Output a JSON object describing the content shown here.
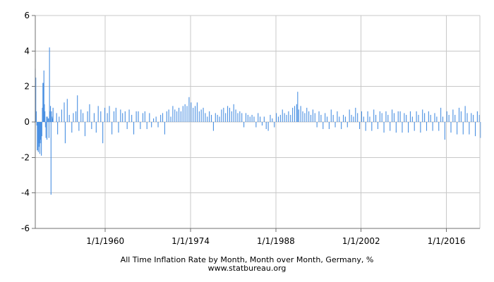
{
  "chart_data": {
    "type": "bar",
    "title": "All Time Inflation Rate by Month, Month over Month, Germany, %",
    "source": "www.statbureau.org",
    "xlabel": "",
    "ylabel": "",
    "x_tick_labels": [
      "1/1/1960",
      "1/1/1974",
      "1/1/1988",
      "1/1/2002",
      "1/1/2016"
    ],
    "x_tick_years": [
      1960,
      1974,
      1988,
      2002,
      2016
    ],
    "x_range_years": [
      1948.5,
      2021.5
    ],
    "y_tick_labels": [
      "6",
      "4",
      "2",
      "0",
      "-2",
      "-4",
      "-6"
    ],
    "ylim": [
      -6,
      6
    ],
    "y_ticks": [
      6,
      4,
      2,
      0,
      -2,
      -4,
      -6
    ],
    "grid": true,
    "legend": "none",
    "series_color": "#4a90e2",
    "grid_color": "#c8c8c8",
    "axis_color": "#707070",
    "series": [
      {
        "points": [
          [
            "1948-07",
            3.0
          ],
          [
            "1948-08",
            2.5
          ],
          [
            "1948-09",
            0.6
          ],
          [
            "1948-10",
            -0.2
          ],
          [
            "1948-11",
            -1.6
          ],
          [
            "1948-12",
            -1.6
          ],
          [
            "1949-01",
            -1.7
          ],
          [
            "1949-02",
            -1.4
          ],
          [
            "1949-03",
            -1.2
          ],
          [
            "1949-04",
            -1.8
          ],
          [
            "1949-05",
            -1.0
          ],
          [
            "1949-06",
            -1.2
          ],
          [
            "1949-07",
            -1.9
          ],
          [
            "1949-08",
            -0.8
          ],
          [
            "1949-09",
            0.8
          ],
          [
            "1949-10",
            2.2
          ],
          [
            "1949-11",
            2.2
          ],
          [
            "1949-12",
            2.9
          ],
          [
            "1950-01",
            1.0
          ],
          [
            "1950-02",
            0.6
          ],
          [
            "1950-03",
            -0.3
          ],
          [
            "1950-04",
            -0.9
          ],
          [
            "1950-05",
            0.3
          ],
          [
            "1950-06",
            -1.0
          ],
          [
            "1950-07",
            0.3
          ],
          [
            "1950-08",
            0.2
          ],
          [
            "1950-09",
            0.2
          ],
          [
            "1950-10",
            -0.9
          ],
          [
            "1950-11",
            4.2
          ],
          [
            "1950-12",
            0.6
          ],
          [
            "1951-01",
            0.9
          ],
          [
            "1951-02",
            -4.1
          ],
          [
            "1951-03",
            0.6
          ],
          [
            "1951-04",
            0.3
          ],
          [
            "1951-05",
            0.2
          ],
          [
            "1951-06",
            0.8
          ],
          [
            "1952-01",
            0.5
          ],
          [
            "1952-03",
            -0.7
          ],
          [
            "1952-06",
            0.3
          ],
          [
            "1952-11",
            0.7
          ],
          [
            "1953-04",
            1.1
          ],
          [
            "1953-06",
            -1.2
          ],
          [
            "1953-10",
            1.3
          ],
          [
            "1954-02",
            0.4
          ],
          [
            "1954-07",
            -0.6
          ],
          [
            "1954-10",
            0.5
          ],
          [
            "1955-03",
            0.6
          ],
          [
            "1955-06",
            1.5
          ],
          [
            "1955-09",
            -0.5
          ],
          [
            "1956-01",
            0.7
          ],
          [
            "1956-05",
            0.5
          ],
          [
            "1956-09",
            -0.8
          ],
          [
            "1957-02",
            0.6
          ],
          [
            "1957-06",
            1.0
          ],
          [
            "1957-10",
            -0.4
          ],
          [
            "1958-03",
            0.5
          ],
          [
            "1958-07",
            -0.6
          ],
          [
            "1958-11",
            0.9
          ],
          [
            "1959-04",
            0.6
          ],
          [
            "1959-08",
            -1.2
          ],
          [
            "1959-12",
            0.8
          ],
          [
            "1960-05",
            0.5
          ],
          [
            "1960-09",
            0.9
          ],
          [
            "1961-02",
            -0.7
          ],
          [
            "1961-06",
            0.6
          ],
          [
            "1961-10",
            0.8
          ],
          [
            "1962-03",
            -0.6
          ],
          [
            "1962-07",
            0.7
          ],
          [
            "1962-11",
            0.5
          ],
          [
            "1963-04",
            0.6
          ],
          [
            "1963-08",
            -0.4
          ],
          [
            "1963-12",
            0.7
          ],
          [
            "1964-05",
            0.4
          ],
          [
            "1964-09",
            -0.7
          ],
          [
            "1965-02",
            0.6
          ],
          [
            "1965-06",
            0.6
          ],
          [
            "1965-10",
            -0.4
          ],
          [
            "1966-03",
            0.5
          ],
          [
            "1966-07",
            0.6
          ],
          [
            "1966-11",
            -0.4
          ],
          [
            "1967-04",
            0.5
          ],
          [
            "1967-08",
            -0.3
          ],
          [
            "1967-12",
            0.2
          ],
          [
            "1968-05",
            0.3
          ],
          [
            "1968-09",
            -0.3
          ],
          [
            "1969-02",
            0.4
          ],
          [
            "1969-06",
            0.5
          ],
          [
            "1969-10",
            -0.7
          ],
          [
            "1970-02",
            0.6
          ],
          [
            "1970-06",
            0.7
          ],
          [
            "1970-10",
            0.3
          ],
          [
            "1971-02",
            0.9
          ],
          [
            "1971-06",
            0.7
          ],
          [
            "1971-10",
            0.6
          ],
          [
            "1972-02",
            0.8
          ],
          [
            "1972-06",
            0.6
          ],
          [
            "1972-10",
            0.9
          ],
          [
            "1973-02",
            1.0
          ],
          [
            "1973-06",
            0.9
          ],
          [
            "1973-10",
            1.4
          ],
          [
            "1974-02",
            1.1
          ],
          [
            "1974-06",
            0.8
          ],
          [
            "1974-10",
            0.9
          ],
          [
            "1975-02",
            1.1
          ],
          [
            "1975-06",
            0.6
          ],
          [
            "1975-10",
            0.7
          ],
          [
            "1976-02",
            0.8
          ],
          [
            "1976-06",
            0.5
          ],
          [
            "1976-10",
            0.3
          ],
          [
            "1977-02",
            0.6
          ],
          [
            "1977-06",
            0.4
          ],
          [
            "1977-10",
            -0.5
          ],
          [
            "1978-02",
            0.5
          ],
          [
            "1978-06",
            0.4
          ],
          [
            "1978-10",
            0.3
          ],
          [
            "1979-02",
            0.7
          ],
          [
            "1979-06",
            0.8
          ],
          [
            "1979-10",
            0.5
          ],
          [
            "1980-02",
            0.9
          ],
          [
            "1980-06",
            0.8
          ],
          [
            "1980-10",
            0.6
          ],
          [
            "1981-02",
            1.0
          ],
          [
            "1981-06",
            0.7
          ],
          [
            "1981-10",
            0.5
          ],
          [
            "1982-02",
            0.6
          ],
          [
            "1982-06",
            0.5
          ],
          [
            "1982-10",
            -0.3
          ],
          [
            "1983-02",
            0.5
          ],
          [
            "1983-06",
            0.4
          ],
          [
            "1983-10",
            0.3
          ],
          [
            "1984-02",
            0.4
          ],
          [
            "1984-06",
            0.3
          ],
          [
            "1984-10",
            -0.3
          ],
          [
            "1985-02",
            0.5
          ],
          [
            "1985-06",
            0.3
          ],
          [
            "1985-10",
            -0.2
          ],
          [
            "1986-02",
            0.3
          ],
          [
            "1986-06",
            -0.4
          ],
          [
            "1986-10",
            -0.5
          ],
          [
            "1987-02",
            0.4
          ],
          [
            "1987-06",
            0.2
          ],
          [
            "1987-10",
            -0.3
          ],
          [
            "1988-02",
            0.5
          ],
          [
            "1988-06",
            0.3
          ],
          [
            "1988-10",
            0.4
          ],
          [
            "1989-02",
            0.7
          ],
          [
            "1989-06",
            0.5
          ],
          [
            "1989-10",
            0.4
          ],
          [
            "1990-02",
            0.6
          ],
          [
            "1990-06",
            0.4
          ],
          [
            "1990-10",
            0.8
          ],
          [
            "1991-02",
            0.9
          ],
          [
            "1991-06",
            1.0
          ],
          [
            "1991-08",
            1.7
          ],
          [
            "1991-10",
            0.7
          ],
          [
            "1992-02",
            0.9
          ],
          [
            "1992-06",
            0.6
          ],
          [
            "1992-10",
            0.5
          ],
          [
            "1993-02",
            0.8
          ],
          [
            "1993-06",
            0.6
          ],
          [
            "1993-10",
            0.4
          ],
          [
            "1994-02",
            0.7
          ],
          [
            "1994-06",
            0.5
          ],
          [
            "1994-10",
            -0.3
          ],
          [
            "1995-02",
            0.6
          ],
          [
            "1995-06",
            0.4
          ],
          [
            "1995-10",
            -0.4
          ],
          [
            "1996-02",
            0.5
          ],
          [
            "1996-06",
            0.3
          ],
          [
            "1996-10",
            -0.4
          ],
          [
            "1997-02",
            0.7
          ],
          [
            "1997-06",
            0.4
          ],
          [
            "1997-10",
            -0.3
          ],
          [
            "1998-02",
            0.6
          ],
          [
            "1998-06",
            0.3
          ],
          [
            "1998-10",
            -0.4
          ],
          [
            "1999-02",
            0.4
          ],
          [
            "1999-06",
            0.3
          ],
          [
            "1999-10",
            -0.3
          ],
          [
            "2000-02",
            0.7
          ],
          [
            "2000-06",
            0.4
          ],
          [
            "2000-10",
            0.3
          ],
          [
            "2001-02",
            0.8
          ],
          [
            "2001-06",
            0.5
          ],
          [
            "2001-10",
            -0.4
          ],
          [
            "2002-02",
            0.6
          ],
          [
            "2002-06",
            0.3
          ],
          [
            "2002-10",
            -0.5
          ],
          [
            "2003-02",
            0.6
          ],
          [
            "2003-06",
            0.3
          ],
          [
            "2003-10",
            -0.5
          ],
          [
            "2004-02",
            0.7
          ],
          [
            "2004-06",
            0.4
          ],
          [
            "2004-10",
            -0.4
          ],
          [
            "2005-02",
            0.6
          ],
          [
            "2005-06",
            0.5
          ],
          [
            "2005-10",
            -0.6
          ],
          [
            "2006-02",
            0.6
          ],
          [
            "2006-06",
            0.4
          ],
          [
            "2006-10",
            -0.5
          ],
          [
            "2007-02",
            0.7
          ],
          [
            "2007-06",
            0.5
          ],
          [
            "2007-10",
            -0.6
          ],
          [
            "2008-02",
            0.6
          ],
          [
            "2008-06",
            0.6
          ],
          [
            "2008-10",
            -0.6
          ],
          [
            "2009-02",
            0.5
          ],
          [
            "2009-06",
            0.4
          ],
          [
            "2009-10",
            -0.6
          ],
          [
            "2010-02",
            0.6
          ],
          [
            "2010-06",
            0.3
          ],
          [
            "2010-10",
            -0.5
          ],
          [
            "2011-02",
            0.6
          ],
          [
            "2011-06",
            0.4
          ],
          [
            "2011-10",
            -0.6
          ],
          [
            "2012-02",
            0.7
          ],
          [
            "2012-06",
            0.5
          ],
          [
            "2012-10",
            -0.5
          ],
          [
            "2013-02",
            0.6
          ],
          [
            "2013-06",
            0.4
          ],
          [
            "2013-10",
            -0.5
          ],
          [
            "2014-02",
            0.5
          ],
          [
            "2014-06",
            0.3
          ],
          [
            "2014-10",
            -0.5
          ],
          [
            "2015-02",
            0.8
          ],
          [
            "2015-06",
            0.3
          ],
          [
            "2015-10",
            -1.0
          ],
          [
            "2016-02",
            0.6
          ],
          [
            "2016-06",
            0.4
          ],
          [
            "2016-10",
            -0.6
          ],
          [
            "2017-02",
            0.7
          ],
          [
            "2017-06",
            0.4
          ],
          [
            "2017-10",
            -0.7
          ],
          [
            "2018-02",
            0.8
          ],
          [
            "2018-06",
            0.6
          ],
          [
            "2018-10",
            -0.7
          ],
          [
            "2019-02",
            0.9
          ],
          [
            "2019-06",
            0.5
          ],
          [
            "2019-10",
            -0.7
          ],
          [
            "2020-02",
            0.5
          ],
          [
            "2020-06",
            0.4
          ],
          [
            "2020-10",
            -0.8
          ],
          [
            "2021-02",
            0.6
          ],
          [
            "2021-06",
            0.4
          ],
          [
            "2021-08",
            -0.9
          ]
        ]
      }
    ]
  }
}
